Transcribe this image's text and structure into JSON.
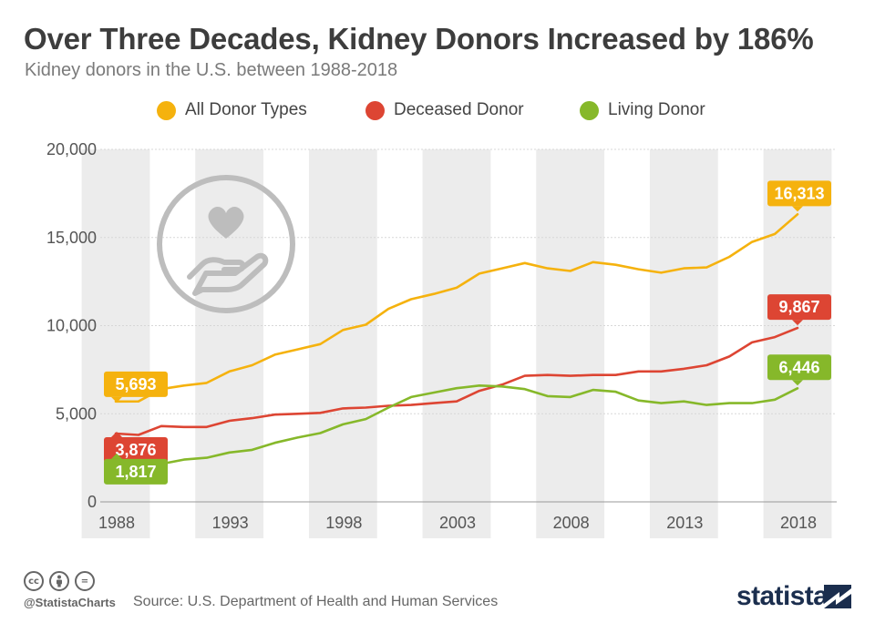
{
  "header": {
    "title": "Over Three Decades, Kidney Donors Increased by 186%",
    "subtitle": "Kidney donors in the U.S. between 1988-2018"
  },
  "footer": {
    "handle": "@StatistaCharts",
    "source": "Source: U.S. Department of Health and Human Services",
    "brand": "statista",
    "license_icons": [
      "cc",
      "by",
      "="
    ]
  },
  "colors": {
    "all": "#f5b20e",
    "deceased": "#dd4533",
    "living": "#86b82a",
    "grid": "#d7d7d7",
    "band": "#ececec",
    "icon": "#bdbdbd"
  },
  "chart_data": {
    "type": "line",
    "title": "Over Three Decades, Kidney Donors Increased by 186%",
    "subtitle": "Kidney donors in the U.S. between 1988-2018",
    "xlabel": "",
    "ylabel": "",
    "ylim": [
      0,
      20000
    ],
    "yticks": [
      0,
      5000,
      10000,
      15000,
      20000
    ],
    "ytick_labels": [
      "0",
      "5,000",
      "10,000",
      "15,000",
      "20,000"
    ],
    "xtick_labels": [
      "1988",
      "1993",
      "1998",
      "2003",
      "2008",
      "2013",
      "2018"
    ],
    "xtick_years": [
      1988,
      1993,
      1998,
      2003,
      2008,
      2013,
      2018
    ],
    "x": [
      1988,
      1989,
      1990,
      1991,
      1992,
      1993,
      1994,
      1995,
      1996,
      1997,
      1998,
      1999,
      2000,
      2001,
      2002,
      2003,
      2004,
      2005,
      2006,
      2007,
      2008,
      2009,
      2010,
      2011,
      2012,
      2013,
      2014,
      2015,
      2016,
      2017,
      2018
    ],
    "legend_position": "top-center",
    "series": [
      {
        "key": "all",
        "name": "All Donor Types",
        "values": [
          5693,
          5700,
          6400,
          6600,
          6750,
          7400,
          7750,
          8350,
          8650,
          8950,
          9750,
          10050,
          10950,
          11500,
          11800,
          12150,
          12950,
          13250,
          13550,
          13250,
          13100,
          13600,
          13450,
          13200,
          13000,
          13250,
          13300,
          13900,
          14750,
          15200,
          16313
        ],
        "labels": [
          {
            "index": 0,
            "text": "5,693"
          },
          {
            "index": 30,
            "text": "16,313"
          }
        ]
      },
      {
        "key": "deceased",
        "name": "Deceased Donor",
        "values": [
          3876,
          3800,
          4300,
          4250,
          4250,
          4600,
          4750,
          4950,
          5000,
          5050,
          5300,
          5350,
          5450,
          5500,
          5600,
          5700,
          6300,
          6650,
          7150,
          7200,
          7150,
          7200,
          7200,
          7400,
          7400,
          7550,
          7750,
          8250,
          9050,
          9350,
          9867
        ],
        "labels": [
          {
            "index": 0,
            "text": "3,876"
          },
          {
            "index": 30,
            "text": "9,867"
          }
        ]
      },
      {
        "key": "living",
        "name": "Living Donor",
        "values": [
          1817,
          1900,
          2150,
          2400,
          2500,
          2800,
          2950,
          3350,
          3650,
          3900,
          4400,
          4700,
          5350,
          5950,
          6200,
          6450,
          6600,
          6550,
          6400,
          6000,
          5950,
          6350,
          6250,
          5750,
          5600,
          5700,
          5500,
          5600,
          5600,
          5800,
          6446
        ],
        "labels": [
          {
            "index": 0,
            "text": "1,817"
          },
          {
            "index": 30,
            "text": "6,446"
          }
        ]
      }
    ]
  }
}
